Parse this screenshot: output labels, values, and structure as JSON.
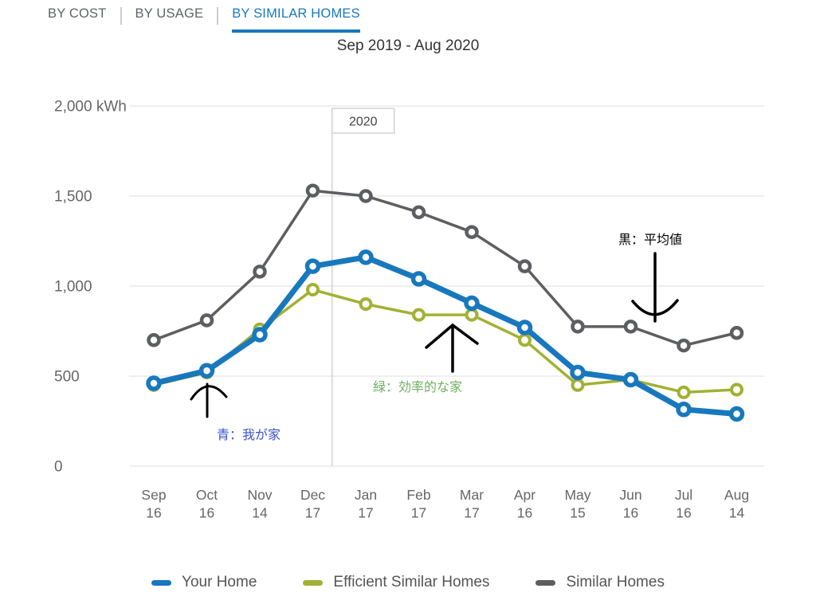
{
  "tabs": [
    {
      "label": "BY COST",
      "active": false
    },
    {
      "label": "BY USAGE",
      "active": false
    },
    {
      "label": "BY SIMILAR HOMES",
      "active": true
    }
  ],
  "title": "Sep 2019 - Aug 2020",
  "colors": {
    "active_tab": "#1878be",
    "grid": "#e5e5e5",
    "axis_text": "#666668"
  },
  "chart_data": {
    "type": "line",
    "title": "Sep 2019 - Aug 2020",
    "unit": "kWh",
    "ylim": [
      0,
      2000
    ],
    "grid": true,
    "legend_position": "bottom",
    "y_ticks": [
      {
        "value": 2000,
        "label": "2,000 kWh"
      },
      {
        "value": 1500,
        "label": "1,500"
      },
      {
        "value": 1000,
        "label": "1,000"
      },
      {
        "value": 500,
        "label": "500"
      },
      {
        "value": 0,
        "label": "0"
      }
    ],
    "categories": [
      {
        "month": "Sep",
        "day": "16"
      },
      {
        "month": "Oct",
        "day": "16"
      },
      {
        "month": "Nov",
        "day": "14"
      },
      {
        "month": "Dec",
        "day": "17"
      },
      {
        "month": "Jan",
        "day": "17"
      },
      {
        "month": "Feb",
        "day": "17"
      },
      {
        "month": "Mar",
        "day": "17"
      },
      {
        "month": "Apr",
        "day": "16"
      },
      {
        "month": "May",
        "day": "15"
      },
      {
        "month": "Jun",
        "day": "16"
      },
      {
        "month": "Jul",
        "day": "16"
      },
      {
        "month": "Aug",
        "day": "14"
      }
    ],
    "year_divider": {
      "label": "2020",
      "between_index": 3.5
    },
    "series": [
      {
        "name": "Your Home",
        "color": "#1878be",
        "values": [
          460,
          530,
          730,
          1110,
          1160,
          1040,
          905,
          770,
          520,
          480,
          315,
          290
        ]
      },
      {
        "name": "Efficient Similar Homes",
        "color": "#a2b132",
        "values": [
          450,
          520,
          760,
          980,
          900,
          840,
          840,
          700,
          450,
          480,
          410,
          425
        ]
      },
      {
        "name": "Similar Homes",
        "color": "#5d5e61",
        "values": [
          700,
          810,
          1080,
          1530,
          1500,
          1410,
          1300,
          1110,
          775,
          775,
          670,
          740
        ]
      }
    ]
  },
  "annotations": {
    "your_home": {
      "text": "青：我が家",
      "color": "#3a53d0"
    },
    "efficient_homes": {
      "text": "緑：効率的な家",
      "color": "#6fb05f"
    },
    "similar_homes": {
      "text": "黒：平均値",
      "color": "#000000"
    }
  }
}
